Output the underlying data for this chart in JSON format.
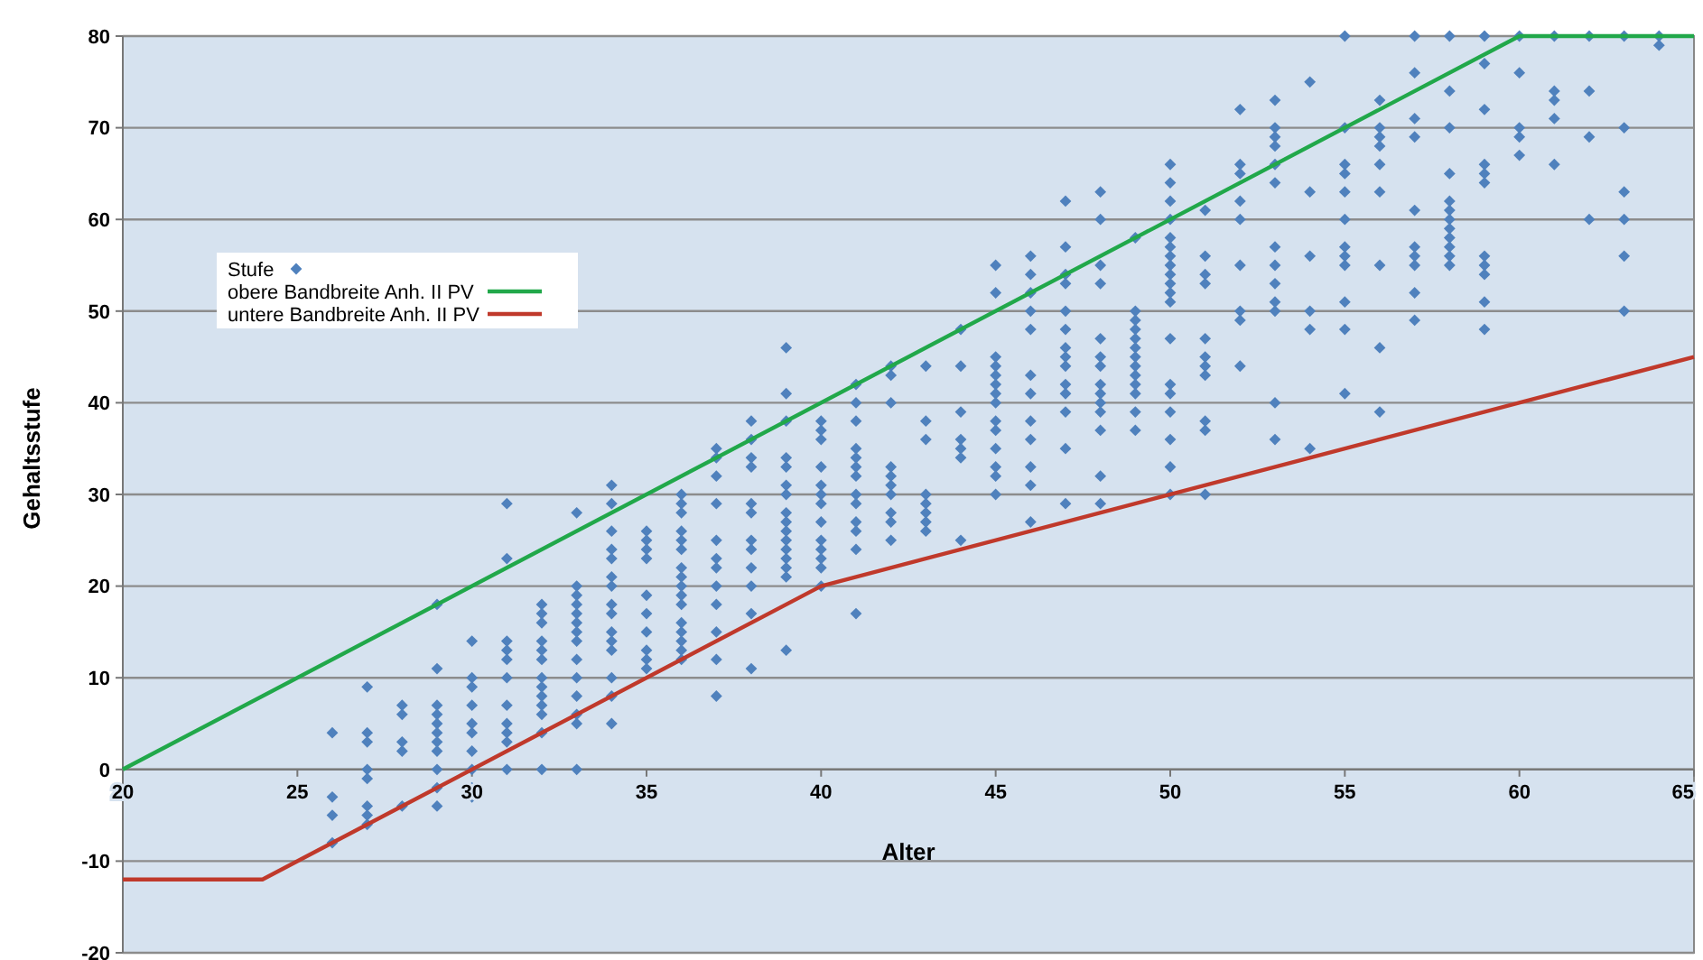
{
  "chart_data": {
    "type": "scatter",
    "xlabel": "Alter",
    "ylabel": "Gehaltsstufe",
    "xlim": [
      20,
      65
    ],
    "ylim": [
      -20,
      80
    ],
    "xticks": [
      20,
      25,
      30,
      35,
      40,
      45,
      50,
      55,
      60,
      65
    ],
    "yticks": [
      -20,
      -10,
      0,
      10,
      20,
      30,
      40,
      50,
      60,
      70,
      80
    ],
    "grid": "y",
    "legend": "left",
    "series": [
      {
        "name": "Stufe",
        "marker": "diamond",
        "color": "#4f81bd",
        "x": [
          26,
          26,
          26,
          26,
          27,
          27,
          27,
          27,
          27,
          27,
          27,
          27,
          28,
          28,
          28,
          28,
          28,
          29,
          29,
          29,
          29,
          29,
          29,
          29,
          29,
          29,
          29,
          29,
          30,
          30,
          30,
          30,
          30,
          30,
          30,
          30,
          30,
          30,
          31,
          31,
          31,
          31,
          31,
          31,
          31,
          31,
          31,
          31,
          31,
          32,
          32,
          32,
          32,
          32,
          32,
          32,
          32,
          32,
          32,
          32,
          32,
          32,
          33,
          33,
          33,
          33,
          33,
          33,
          33,
          33,
          33,
          33,
          33,
          33,
          33,
          33,
          34,
          34,
          34,
          34,
          34,
          34,
          34,
          34,
          34,
          34,
          34,
          34,
          34,
          34,
          34,
          35,
          35,
          35,
          35,
          35,
          35,
          35,
          35,
          35,
          35,
          36,
          36,
          36,
          36,
          36,
          36,
          36,
          36,
          36,
          36,
          36,
          36,
          36,
          36,
          36,
          36,
          37,
          37,
          37,
          37,
          37,
          37,
          37,
          37,
          37,
          37,
          37,
          37,
          38,
          38,
          38,
          38,
          38,
          38,
          38,
          38,
          38,
          38,
          38,
          38,
          39,
          39,
          39,
          39,
          39,
          39,
          39,
          39,
          39,
          39,
          39,
          39,
          39,
          39,
          39,
          39,
          40,
          40,
          40,
          40,
          40,
          40,
          40,
          40,
          40,
          40,
          40,
          40,
          40,
          41,
          41,
          41,
          41,
          41,
          41,
          41,
          41,
          41,
          41,
          41,
          41,
          41,
          42,
          42,
          42,
          42,
          42,
          42,
          42,
          42,
          42,
          42,
          43,
          43,
          43,
          43,
          43,
          43,
          43,
          43,
          44,
          44,
          44,
          44,
          44,
          44,
          44,
          45,
          45,
          45,
          45,
          45,
          45,
          45,
          45,
          45,
          45,
          45,
          45,
          45,
          45,
          46,
          46,
          46,
          46,
          46,
          46,
          46,
          46,
          46,
          46,
          46,
          46,
          47,
          47,
          47,
          47,
          47,
          47,
          47,
          47,
          47,
          47,
          47,
          47,
          47,
          47,
          48,
          48,
          48,
          48,
          48,
          48,
          48,
          48,
          48,
          48,
          48,
          48,
          48,
          48,
          49,
          49,
          49,
          49,
          49,
          49,
          49,
          49,
          49,
          49,
          49,
          49,
          49,
          50,
          50,
          50,
          50,
          50,
          50,
          50,
          50,
          50,
          50,
          50,
          50,
          50,
          50,
          50,
          50,
          50,
          50,
          50,
          51,
          51,
          51,
          51,
          51,
          51,
          51,
          51,
          51,
          51,
          51,
          52,
          52,
          52,
          52,
          52,
          52,
          52,
          52,
          52,
          53,
          53,
          53,
          53,
          53,
          53,
          53,
          53,
          53,
          53,
          53,
          53,
          53,
          54,
          54,
          54,
          54,
          54,
          54,
          55,
          55,
          55,
          55,
          55,
          55,
          55,
          55,
          55,
          55,
          55,
          55,
          56,
          56,
          56,
          56,
          56,
          56,
          56,
          56,
          56,
          57,
          57,
          57,
          57,
          57,
          57,
          57,
          57,
          57,
          57,
          58,
          58,
          58,
          58,
          58,
          58,
          58,
          58,
          58,
          58,
          58,
          58,
          59,
          59,
          59,
          59,
          59,
          59,
          59,
          59,
          59,
          59,
          59,
          60,
          60,
          60,
          60,
          60,
          61,
          61,
          61,
          61,
          61,
          62,
          62,
          62,
          62,
          63,
          63,
          63,
          63,
          63,
          63,
          64,
          64
        ],
        "values": [
          4,
          -3,
          -5,
          -8,
          9,
          4,
          3,
          0,
          -1,
          -4,
          -5,
          -6,
          7,
          6,
          3,
          2,
          -4,
          18,
          11,
          7,
          6,
          5,
          4,
          3,
          2,
          0,
          -2,
          -4,
          14,
          10,
          9,
          7,
          5,
          4,
          2,
          0,
          -2,
          -3,
          29,
          23,
          14,
          13,
          12,
          10,
          7,
          5,
          4,
          3,
          0,
          18,
          17,
          16,
          14,
          13,
          12,
          10,
          9,
          8,
          7,
          6,
          4,
          0,
          28,
          20,
          19,
          18,
          17,
          16,
          15,
          14,
          12,
          10,
          8,
          6,
          5,
          0,
          31,
          29,
          26,
          24,
          23,
          21,
          20,
          18,
          17,
          15,
          14,
          13,
          10,
          8,
          5,
          26,
          25,
          24,
          23,
          19,
          17,
          15,
          13,
          12,
          11,
          30,
          29,
          28,
          26,
          25,
          24,
          22,
          21,
          20,
          19,
          18,
          16,
          15,
          14,
          13,
          12,
          35,
          34,
          32,
          29,
          25,
          23,
          22,
          20,
          18,
          15,
          12,
          8,
          38,
          36,
          34,
          33,
          29,
          28,
          25,
          24,
          22,
          20,
          17,
          11,
          46,
          41,
          38,
          34,
          33,
          31,
          30,
          28,
          27,
          26,
          25,
          24,
          23,
          22,
          21,
          13,
          38,
          37,
          36,
          33,
          31,
          30,
          29,
          27,
          25,
          24,
          23,
          22,
          20,
          42,
          40,
          38,
          35,
          34,
          33,
          32,
          30,
          29,
          27,
          26,
          24,
          17,
          44,
          43,
          40,
          33,
          32,
          31,
          30,
          28,
          27,
          25,
          44,
          38,
          36,
          30,
          29,
          28,
          27,
          26,
          48,
          44,
          39,
          36,
          35,
          34,
          25,
          55,
          52,
          45,
          44,
          43,
          42,
          41,
          40,
          38,
          37,
          35,
          33,
          32,
          30,
          56,
          54,
          52,
          50,
          48,
          43,
          41,
          38,
          36,
          33,
          31,
          27,
          62,
          57,
          54,
          53,
          50,
          48,
          46,
          45,
          44,
          42,
          41,
          39,
          35,
          29,
          63,
          60,
          55,
          53,
          47,
          45,
          44,
          42,
          41,
          40,
          39,
          37,
          32,
          29,
          58,
          50,
          49,
          48,
          47,
          46,
          45,
          44,
          43,
          42,
          41,
          39,
          37,
          66,
          64,
          62,
          60,
          58,
          57,
          56,
          55,
          54,
          53,
          52,
          51,
          47,
          42,
          41,
          39,
          36,
          33,
          30,
          61,
          56,
          54,
          53,
          47,
          45,
          44,
          43,
          38,
          37,
          30,
          72,
          66,
          65,
          62,
          60,
          55,
          50,
          49,
          44,
          73,
          70,
          69,
          68,
          66,
          64,
          57,
          55,
          53,
          51,
          50,
          40,
          36,
          75,
          63,
          56,
          50,
          48,
          35,
          80,
          70,
          66,
          65,
          63,
          60,
          57,
          56,
          55,
          51,
          48,
          41,
          73,
          70,
          69,
          68,
          66,
          63,
          55,
          46,
          39,
          80,
          76,
          71,
          69,
          61,
          57,
          56,
          55,
          52,
          49,
          80,
          74,
          70,
          65,
          62,
          61,
          60,
          59,
          58,
          57,
          56,
          55,
          80,
          77,
          72,
          66,
          65,
          64,
          56,
          55,
          54,
          51,
          48,
          80,
          76,
          70,
          69,
          67,
          80,
          74,
          73,
          71,
          66,
          80,
          74,
          69,
          60,
          80,
          70,
          63,
          60,
          56,
          50,
          80,
          79
        ]
      },
      {
        "name": "obere Bandbreite Anh. II PV",
        "type": "line",
        "color": "#21a84a",
        "marker": "none",
        "x": [
          20,
          60,
          65
        ],
        "values": [
          0,
          80,
          80
        ]
      },
      {
        "name": "untere Bandbreite Anh. II PV",
        "type": "line",
        "color": "#c0392b",
        "marker": "none",
        "x": [
          20,
          24,
          40,
          65
        ],
        "values": [
          -12,
          -12,
          20,
          45
        ]
      }
    ]
  }
}
